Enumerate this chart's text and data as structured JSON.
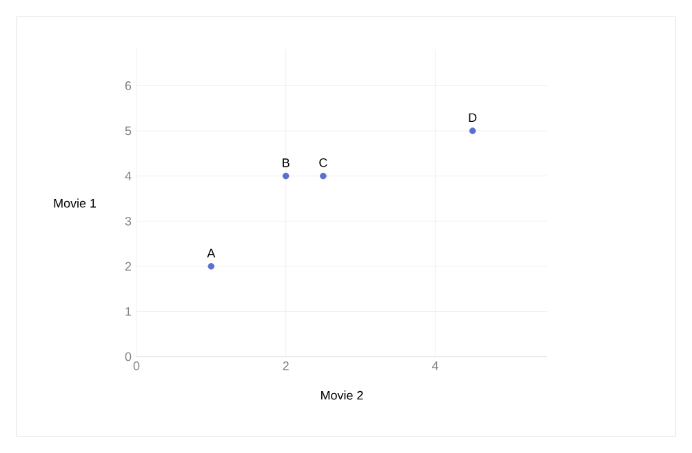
{
  "chart_data": {
    "type": "scatter",
    "xlabel": "Movie 2",
    "ylabel": "Movie 1",
    "x": [
      1,
      2,
      2.5,
      4.5
    ],
    "values": [
      2,
      4,
      4,
      5
    ],
    "color": "#5a6fcf",
    "marker": "circle",
    "xlim": [
      0,
      5.5
    ],
    "ylim": [
      0,
      6.8
    ],
    "xticks": [
      0,
      2,
      4
    ],
    "yticks": [
      0,
      1,
      2,
      3,
      4,
      5,
      6
    ],
    "grid": true,
    "annotations": [
      {
        "text": "A",
        "x": 1,
        "y": 2
      },
      {
        "text": "B",
        "x": 2,
        "y": 4
      },
      {
        "text": "C",
        "x": 2.5,
        "y": 4
      },
      {
        "text": "D",
        "x": 4.5,
        "y": 5
      }
    ]
  }
}
